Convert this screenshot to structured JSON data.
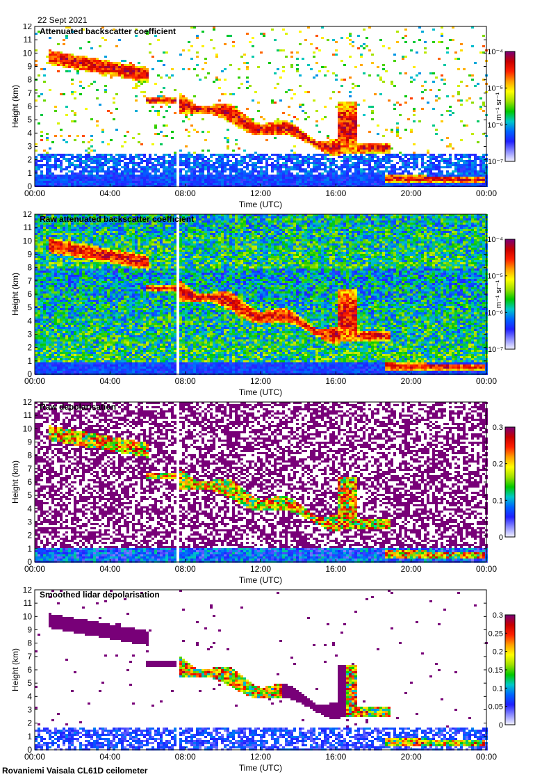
{
  "date_label": "22 Sept 2021",
  "footer": "Rovaniemi Vaisala CL61D ceilometer",
  "colors": {
    "rainbow": [
      "#f2f2ff",
      "#8c8cff",
      "#2020ff",
      "#0064ff",
      "#00c8c8",
      "#00c800",
      "#a0e000",
      "#ffff00",
      "#ffa000",
      "#ff2000",
      "#c80000",
      "#780078"
    ],
    "background": "#ffffff"
  },
  "chart_data": [
    {
      "type": "heatmap",
      "title": "Attenuated backscatter coefficient",
      "xlabel": "Time (UTC)",
      "ylabel": "Height (km)",
      "x_ticks": [
        "00:00",
        "04:00",
        "08:00",
        "12:00",
        "16:00",
        "20:00",
        "00:00"
      ],
      "y_ticks": [
        0,
        1,
        2,
        3,
        4,
        5,
        6,
        7,
        8,
        9,
        10,
        11,
        12
      ],
      "ylim": [
        0,
        12
      ],
      "colorbar": {
        "scale": "log",
        "ticks": [
          "10⁻⁷",
          "10⁻⁶",
          "10⁻⁵",
          "10⁻⁴"
        ],
        "label": "m⁻¹ sr⁻¹"
      },
      "style": "masked"
    },
    {
      "type": "heatmap",
      "title": "Raw attenuated backscatter coefficient",
      "xlabel": "Time (UTC)",
      "ylabel": "Height (km)",
      "x_ticks": [
        "00:00",
        "04:00",
        "08:00",
        "12:00",
        "16:00",
        "20:00",
        "00:00"
      ],
      "y_ticks": [
        0,
        1,
        2,
        3,
        4,
        5,
        6,
        7,
        8,
        9,
        10,
        11,
        12
      ],
      "ylim": [
        0,
        12
      ],
      "colorbar": {
        "scale": "log",
        "ticks": [
          "10⁻⁷",
          "10⁻⁶",
          "10⁻⁵",
          "10⁻⁴"
        ],
        "label": "m⁻¹ sr⁻¹"
      },
      "style": "raw"
    },
    {
      "type": "heatmap",
      "title": "Raw depolarisation",
      "xlabel": "Time (UTC)",
      "ylabel": "Height (km)",
      "x_ticks": [
        "00:00",
        "04:00",
        "08:00",
        "12:00",
        "16:00",
        "20:00",
        "00:00"
      ],
      "y_ticks": [
        0,
        1,
        2,
        3,
        4,
        5,
        6,
        7,
        8,
        9,
        10,
        11,
        12
      ],
      "ylim": [
        0,
        12
      ],
      "colorbar": {
        "scale": "linear",
        "ticks": [
          "0",
          "0.1",
          "0.2",
          "0.3"
        ],
        "label": ""
      },
      "style": "depol_raw"
    },
    {
      "type": "heatmap",
      "title": "Smoothed lidar depolarisation",
      "xlabel": "Time (UTC)",
      "ylabel": "Height (km)",
      "x_ticks": [
        "00:00",
        "04:00",
        "08:00",
        "12:00",
        "16:00",
        "20:00",
        "00:00"
      ],
      "y_ticks": [
        0,
        1,
        2,
        3,
        4,
        5,
        6,
        7,
        8,
        9,
        10,
        11,
        12
      ],
      "ylim": [
        0,
        12
      ],
      "colorbar": {
        "scale": "linear",
        "ticks": [
          "0",
          "0.05",
          "0.1",
          "0.15",
          "0.2",
          "0.25",
          "0.3"
        ],
        "label": ""
      },
      "style": "depol_smooth"
    }
  ]
}
